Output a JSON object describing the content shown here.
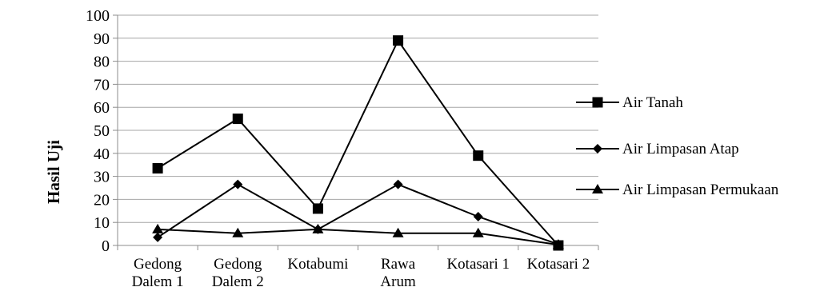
{
  "chart_data": {
    "type": "line",
    "title": "",
    "xlabel": "",
    "ylabel": "Hasil Uji",
    "ylim": [
      0,
      100
    ],
    "yticks": [
      0,
      10,
      20,
      30,
      40,
      50,
      60,
      70,
      80,
      90,
      100
    ],
    "grid": "horizontal",
    "legend_position": "right",
    "categories": [
      [
        "Gedong",
        "Dalem 1"
      ],
      [
        "Gedong",
        "Dalem 2"
      ],
      [
        "Kotabumi"
      ],
      [
        "Rawa",
        "Arum"
      ],
      [
        "Kotasari 1"
      ],
      [
        "Kotasari 2"
      ]
    ],
    "series": [
      {
        "name": "Air Tanah",
        "marker": "square",
        "color": "#000000",
        "values": [
          33.5,
          55,
          16,
          89,
          39,
          0
        ]
      },
      {
        "name": "Air Limpasan Atap",
        "marker": "diamond",
        "color": "#000000",
        "values": [
          3.5,
          26.5,
          7,
          26.5,
          12.5,
          0.5
        ]
      },
      {
        "name": "Air Limpasan Permukaan",
        "marker": "triangle",
        "color": "#000000",
        "values": [
          7,
          5.3,
          7,
          5.3,
          5.3,
          0.3
        ]
      }
    ]
  }
}
